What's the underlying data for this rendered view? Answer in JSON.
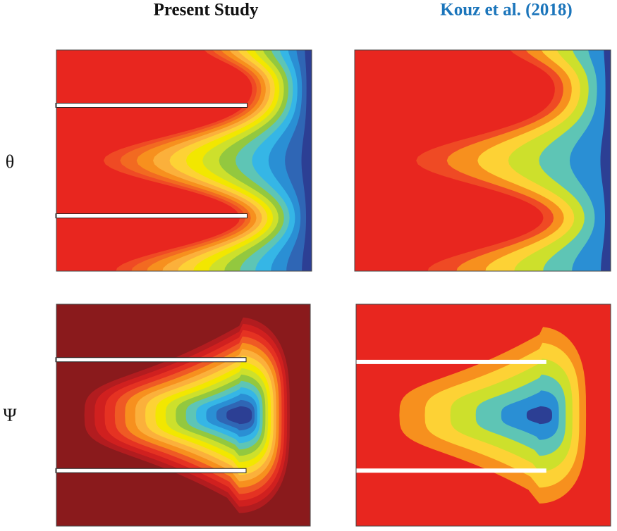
{
  "header": {
    "columns": [
      "Present Study",
      "Kouz et al. (2018)"
    ]
  },
  "rows": [
    {
      "label": "θ"
    },
    {
      "label": "Ψ"
    }
  ]
}
